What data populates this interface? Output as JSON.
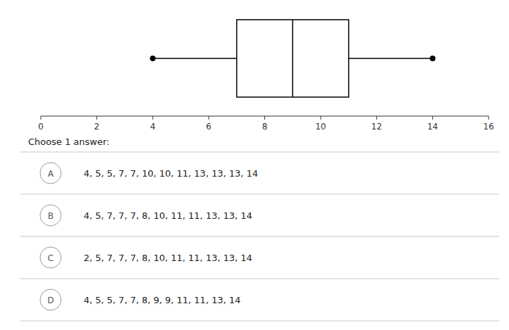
{
  "chart_data": {
    "type": "box",
    "orientation": "horizontal",
    "min": 4,
    "q1": 7,
    "median": 9,
    "q3": 11,
    "max": 14,
    "xlim": [
      0,
      16
    ],
    "xticks": [
      0,
      2,
      4,
      6,
      8,
      10,
      12,
      14,
      16
    ],
    "color": "black",
    "annotations": [
      "Choose 1 answer:"
    ],
    "options": [
      {
        "label": "A",
        "text": "4, 5, 5, 7, 7, 10, 10, 11, 13, 13, 13, 14"
      },
      {
        "label": "B",
        "text": "4, 5, 7, 7, 7, 8, 10, 11, 11, 13, 13, 14"
      },
      {
        "label": "C",
        "text": "2, 5, 7, 7, 7, 8, 10, 11, 11, 13, 13, 14"
      },
      {
        "label": "D",
        "text": "4, 5, 5, 7, 7, 8, 9, 9, 11, 11, 13, 14"
      }
    ]
  }
}
